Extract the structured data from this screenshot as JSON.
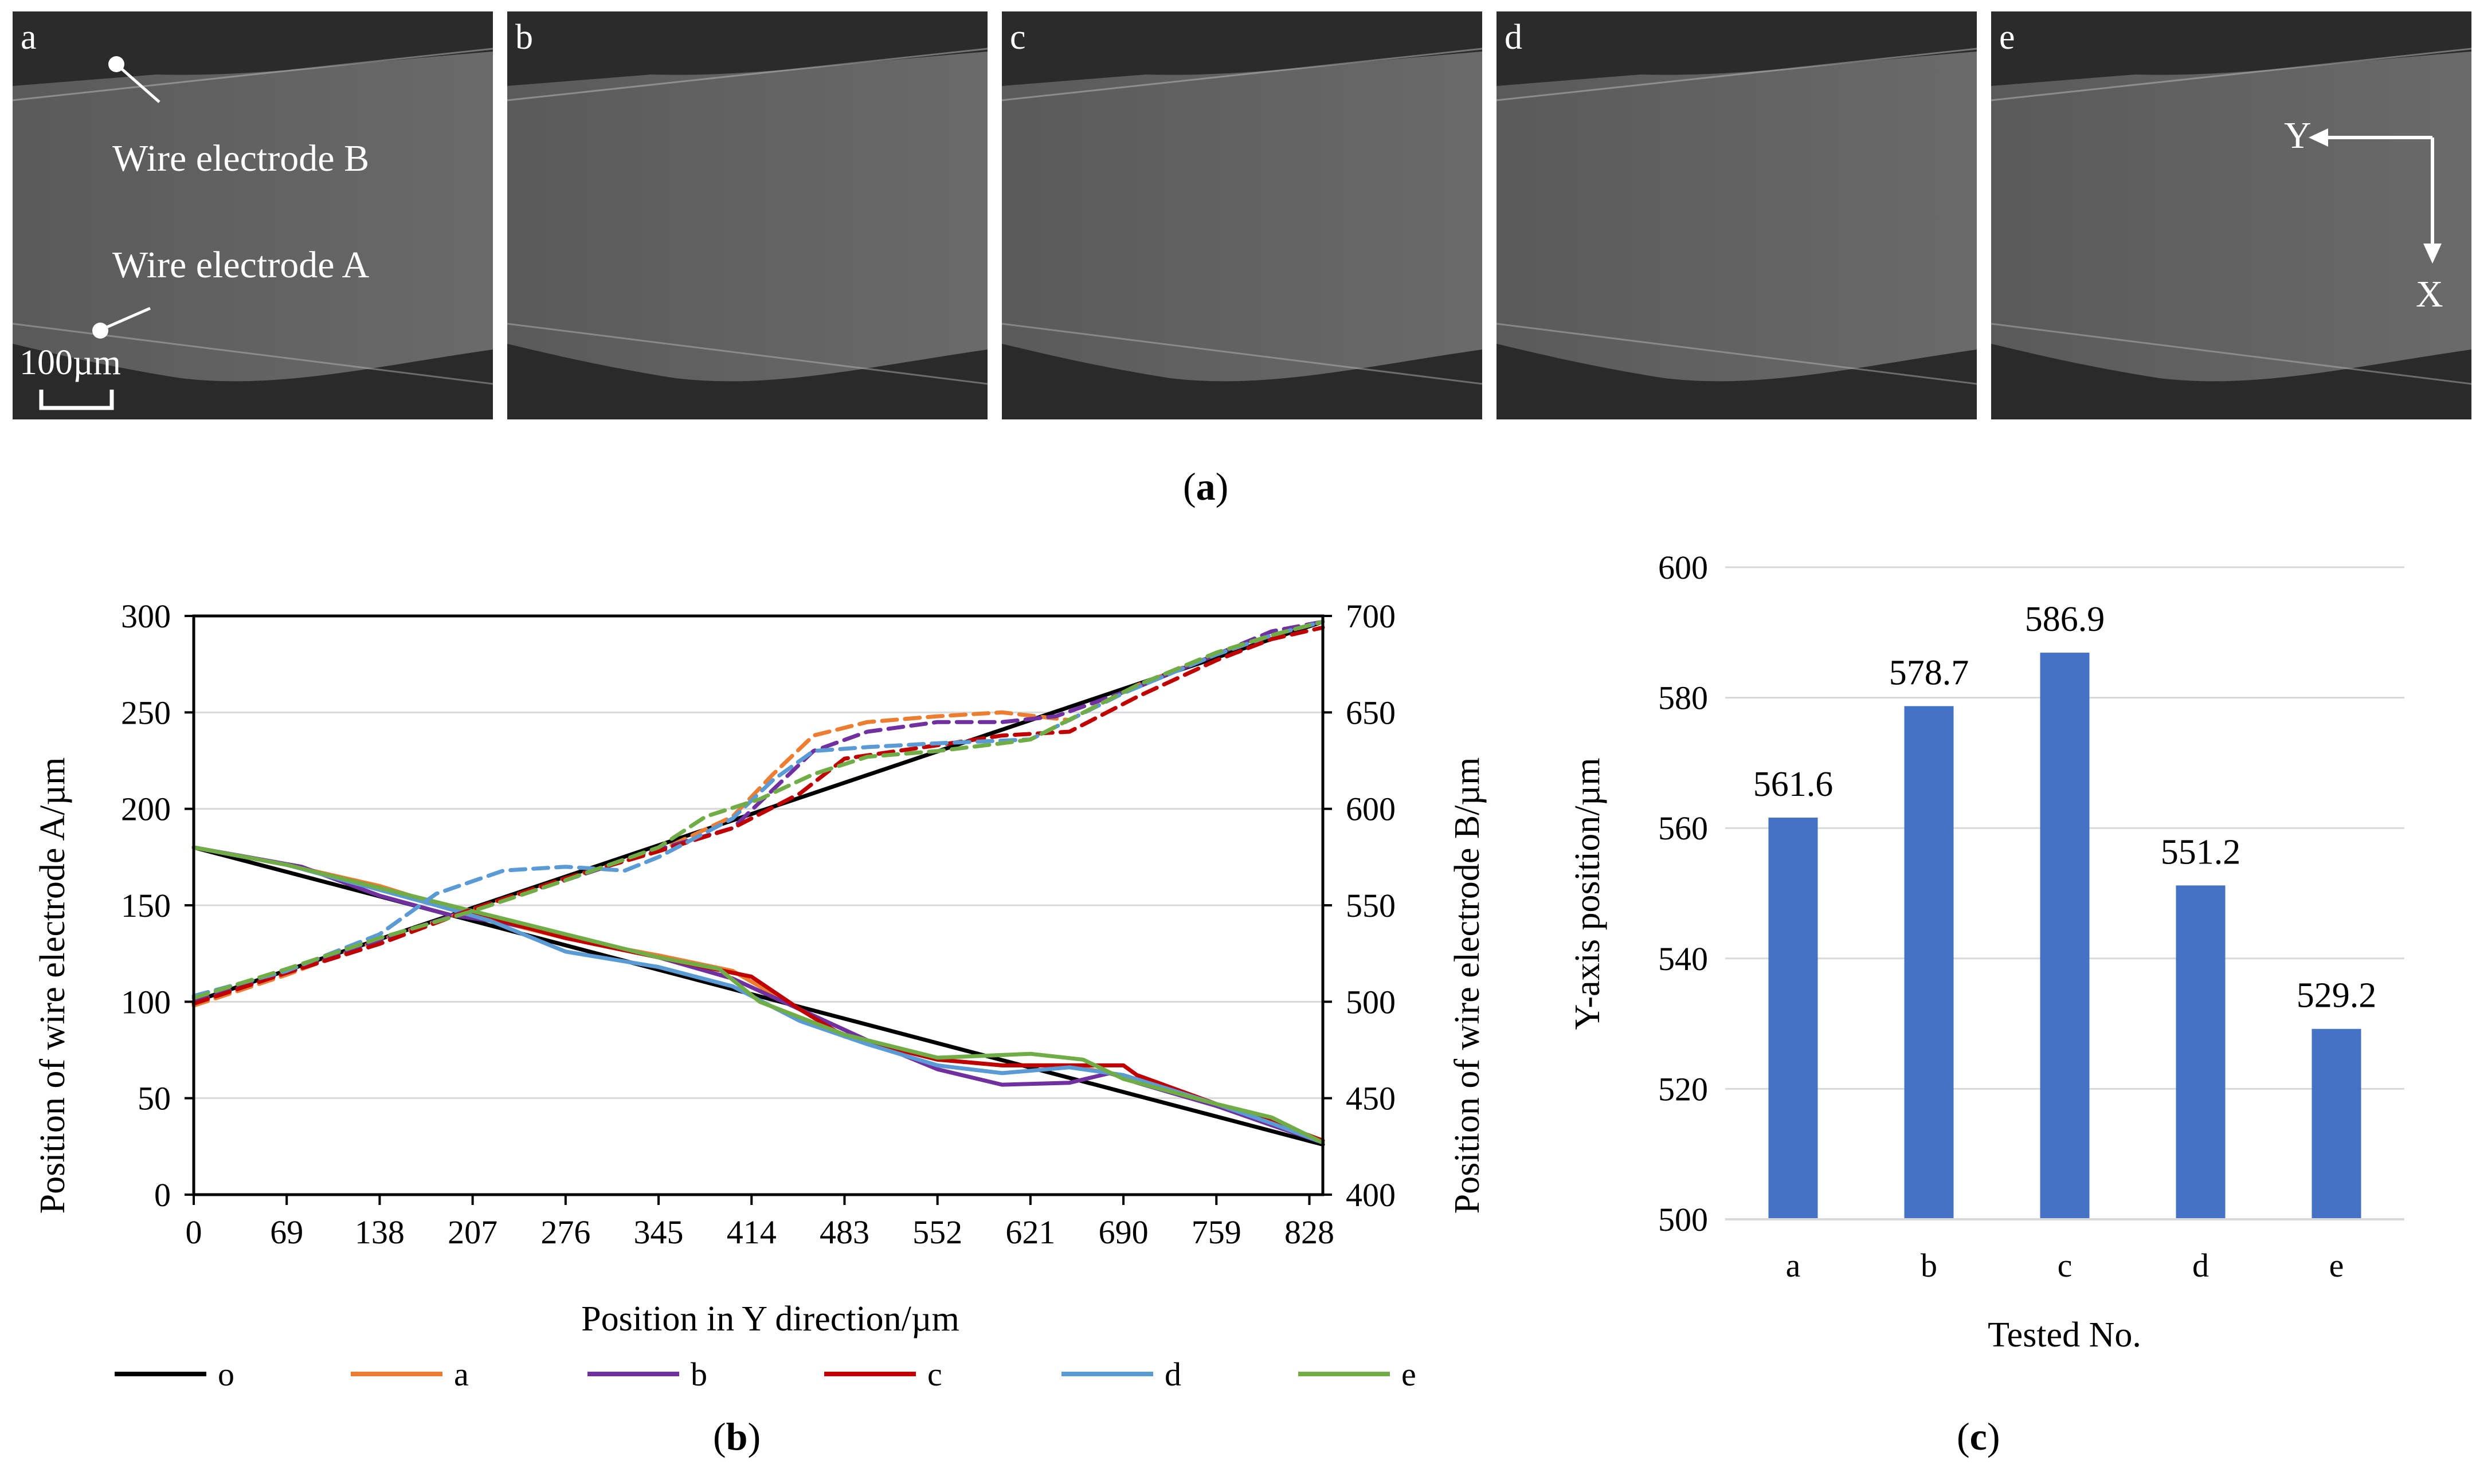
{
  "figure_a": {
    "panels": [
      "a",
      "b",
      "c",
      "d",
      "e"
    ],
    "labels": {
      "electrode_b": "Wire electrode B",
      "electrode_a": "Wire electrode A",
      "scale": "100µm"
    },
    "axes": {
      "y": "Y",
      "x": "X"
    },
    "caption": {
      "open": "(",
      "letter": "a",
      "close": ")"
    }
  },
  "figure_b": {
    "caption": {
      "open": "(",
      "letter": "b",
      "close": ")"
    }
  },
  "figure_c": {
    "caption": {
      "open": "(",
      "letter": "c",
      "close": ")"
    }
  },
  "colors": {
    "o": "#000000",
    "a": "#ED7D31",
    "b": "#7030A0",
    "c": "#C00000",
    "d": "#5B9BD5",
    "e": "#70AD47",
    "bar": "#4472C4",
    "grid": "#D9D9D9"
  },
  "chart_data": [
    {
      "id": "b",
      "type": "line",
      "title": "",
      "xlabel": "Position in Y direction/µm",
      "ylabel_left": "Position of wire electrode A/µm",
      "ylabel_right": "Position of wire electrode B/µm",
      "xlim": [
        0,
        838
      ],
      "ylim_left": [
        0,
        300
      ],
      "ylim_right": [
        400,
        700
      ],
      "x_ticks": [
        0,
        69,
        138,
        207,
        276,
        345,
        414,
        483,
        552,
        621,
        690,
        759,
        828
      ],
      "y_ticks_left": [
        0,
        50,
        100,
        150,
        200,
        250,
        300
      ],
      "y_ticks_right": [
        400,
        450,
        500,
        550,
        600,
        650,
        700
      ],
      "legend": [
        "o",
        "a",
        "b",
        "c",
        "d",
        "e"
      ],
      "legend_position": "bottom",
      "series": [
        {
          "name": "o",
          "axis": "left",
          "style": "solid",
          "x": [
            0,
            838
          ],
          "y": [
            180,
            26
          ]
        },
        {
          "name": "o",
          "axis": "right",
          "style": "solid",
          "x": [
            0,
            838
          ],
          "y": [
            500,
            697
          ]
        },
        {
          "name": "a",
          "axis": "left",
          "style": "solid",
          "x": [
            0,
            69,
            138,
            207,
            276,
            345,
            400,
            450,
            500,
            552,
            600,
            650,
            700,
            759,
            800,
            838
          ],
          "y": [
            180,
            171,
            160,
            145,
            133,
            124,
            116,
            96,
            80,
            70,
            67,
            67,
            60,
            46,
            37,
            28
          ]
        },
        {
          "name": "b",
          "axis": "left",
          "style": "solid",
          "x": [
            0,
            80,
            138,
            190,
            230,
            276,
            345,
            400,
            450,
            500,
            552,
            600,
            650,
            680,
            700,
            759,
            800,
            838
          ],
          "y": [
            180,
            170,
            155,
            145,
            141,
            134,
            123,
            112,
            96,
            80,
            65,
            57,
            58,
            63,
            58,
            46,
            36,
            27
          ]
        },
        {
          "name": "c",
          "axis": "left",
          "style": "solid",
          "x": [
            0,
            69,
            138,
            207,
            276,
            345,
            414,
            450,
            483,
            552,
            600,
            650,
            690,
            700,
            759,
            800,
            838
          ],
          "y": [
            180,
            171,
            159,
            146,
            133,
            123,
            113,
            96,
            82,
            70,
            67,
            67,
            67,
            62,
            47,
            38,
            28
          ]
        },
        {
          "name": "d",
          "axis": "left",
          "style": "solid",
          "x": [
            0,
            69,
            138,
            180,
            220,
            276,
            345,
            400,
            450,
            500,
            552,
            600,
            650,
            690,
            759,
            800,
            838
          ],
          "y": [
            180,
            171,
            158,
            150,
            142,
            126,
            118,
            108,
            90,
            78,
            67,
            63,
            66,
            62,
            47,
            37,
            27
          ]
        },
        {
          "name": "e",
          "axis": "left",
          "style": "solid",
          "x": [
            0,
            69,
            138,
            207,
            276,
            345,
            390,
            420,
            483,
            552,
            621,
            660,
            690,
            759,
            800,
            838
          ],
          "y": [
            180,
            171,
            159,
            147,
            135,
            123,
            117,
            100,
            83,
            71,
            73,
            70,
            60,
            47,
            40,
            27
          ]
        },
        {
          "name": "a",
          "axis": "right",
          "style": "dash",
          "x": [
            0,
            69,
            138,
            207,
            276,
            345,
            400,
            430,
            460,
            500,
            552,
            600,
            650,
            700,
            759,
            800,
            838
          ],
          "y": [
            498,
            514,
            532,
            548,
            564,
            578,
            596,
            618,
            638,
            645,
            648,
            650,
            646,
            664,
            680,
            690,
            697
          ]
        },
        {
          "name": "b",
          "axis": "right",
          "style": "dash",
          "x": [
            0,
            69,
            138,
            207,
            276,
            345,
            400,
            430,
            460,
            500,
            552,
            600,
            640,
            700,
            759,
            800,
            838
          ],
          "y": [
            500,
            515,
            532,
            548,
            563,
            579,
            590,
            610,
            630,
            640,
            645,
            645,
            648,
            663,
            680,
            692,
            697
          ]
        },
        {
          "name": "c",
          "axis": "right",
          "style": "dash",
          "x": [
            0,
            69,
            138,
            207,
            276,
            345,
            400,
            450,
            483,
            552,
            600,
            650,
            700,
            759,
            800,
            838
          ],
          "y": [
            499,
            515,
            530,
            548,
            564,
            578,
            590,
            608,
            626,
            633,
            638,
            640,
            658,
            677,
            688,
            694
          ]
        },
        {
          "name": "d",
          "axis": "right",
          "style": "dash",
          "x": [
            0,
            69,
            138,
            180,
            230,
            276,
            320,
            345,
            400,
            430,
            460,
            500,
            552,
            621,
            690,
            759,
            800,
            838
          ],
          "y": [
            503,
            516,
            535,
            556,
            568,
            570,
            568,
            575,
            595,
            615,
            630,
            632,
            634,
            636,
            660,
            680,
            690,
            697
          ]
        },
        {
          "name": "e",
          "axis": "right",
          "style": "dash",
          "x": [
            0,
            69,
            138,
            207,
            276,
            345,
            380,
            420,
            460,
            500,
            552,
            600,
            621,
            700,
            759,
            800,
            838
          ],
          "y": [
            502,
            517,
            533,
            547,
            563,
            580,
            596,
            605,
            618,
            627,
            630,
            634,
            636,
            664,
            681,
            690,
            697
          ]
        }
      ]
    },
    {
      "id": "c",
      "type": "bar",
      "title": "",
      "xlabel": "Tested No.",
      "ylabel": "Y-axis position/µm",
      "categories": [
        "a",
        "b",
        "c",
        "d",
        "e"
      ],
      "values": [
        561.6,
        578.7,
        586.9,
        551.2,
        529.2
      ],
      "value_labels": [
        "561.6",
        "578.7",
        "586.9",
        "551.2",
        "529.2"
      ],
      "ylim": [
        500,
        600
      ],
      "y_ticks": [
        500,
        520,
        540,
        560,
        580,
        600
      ]
    }
  ]
}
